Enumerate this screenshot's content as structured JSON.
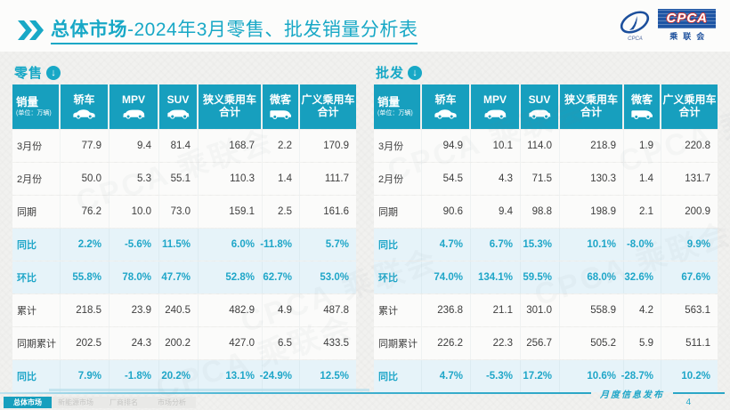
{
  "page": {
    "title_prefix": "总体市场",
    "title_suffix": "-2024年3月零售、批发销量分析表",
    "footer_note": "月度信息发布",
    "page_number": "4"
  },
  "logo": {
    "acronym": "CPCA",
    "cn_name": "乘联会",
    "tagline": "CPCA"
  },
  "accent_colors": {
    "teal": "#179FBE",
    "percent_text": "#1FA6C8",
    "percent_row_bg": "#E6F3F9",
    "logo_blue": "#1C4F9C",
    "logo_red": "#D0312D"
  },
  "columns": {
    "corner": {
      "label": "销量",
      "unit": "(单位：万辆)"
    },
    "items": [
      {
        "key": "sedan",
        "label": "轿车",
        "icon": "sedan-icon"
      },
      {
        "key": "mpv",
        "label": "MPV",
        "icon": "mpv-icon"
      },
      {
        "key": "suv",
        "label": "SUV",
        "icon": "suv-icon"
      },
      {
        "key": "narrow_total",
        "label": "狭义乘用车",
        "label2": "合计",
        "icon": null
      },
      {
        "key": "micro_van",
        "label": "微客",
        "icon": "van-icon"
      },
      {
        "key": "broad_total",
        "label": "广义乘用车",
        "label2": "合计",
        "icon": null
      }
    ]
  },
  "tables": {
    "retail": {
      "section_label": "零售",
      "rows": [
        {
          "label": "3月份",
          "type": "normal",
          "values": [
            "77.9",
            "9.4",
            "81.4",
            "168.7",
            "2.2",
            "170.9"
          ]
        },
        {
          "label": "2月份",
          "type": "normal",
          "values": [
            "50.0",
            "5.3",
            "55.1",
            "110.3",
            "1.4",
            "111.7"
          ]
        },
        {
          "label": "同期",
          "type": "normal",
          "values": [
            "76.2",
            "10.0",
            "73.0",
            "159.1",
            "2.5",
            "161.6"
          ]
        },
        {
          "label": "同比",
          "type": "percent",
          "values": [
            "2.2%",
            "-5.6%",
            "11.5%",
            "6.0%",
            "-11.8%",
            "5.7%"
          ]
        },
        {
          "label": "环比",
          "type": "percent",
          "values": [
            "55.8%",
            "78.0%",
            "47.7%",
            "52.8%",
            "62.7%",
            "53.0%"
          ]
        },
        {
          "label": "累计",
          "type": "normal",
          "values": [
            "218.5",
            "23.9",
            "240.5",
            "482.9",
            "4.9",
            "487.8"
          ]
        },
        {
          "label": "同期累计",
          "type": "normal",
          "values": [
            "202.5",
            "24.3",
            "200.2",
            "427.0",
            "6.5",
            "433.5"
          ]
        },
        {
          "label": "同比",
          "type": "percent",
          "values": [
            "7.9%",
            "-1.8%",
            "20.2%",
            "13.1%",
            "-24.9%",
            "12.5%"
          ]
        }
      ]
    },
    "wholesale": {
      "section_label": "批发",
      "rows": [
        {
          "label": "3月份",
          "type": "normal",
          "values": [
            "94.9",
            "10.1",
            "114.0",
            "218.9",
            "1.9",
            "220.8"
          ]
        },
        {
          "label": "2月份",
          "type": "normal",
          "values": [
            "54.5",
            "4.3",
            "71.5",
            "130.3",
            "1.4",
            "131.7"
          ]
        },
        {
          "label": "同期",
          "type": "normal",
          "values": [
            "90.6",
            "9.4",
            "98.8",
            "198.9",
            "2.1",
            "200.9"
          ]
        },
        {
          "label": "同比",
          "type": "percent",
          "values": [
            "4.7%",
            "6.7%",
            "15.3%",
            "10.1%",
            "-8.0%",
            "9.9%"
          ]
        },
        {
          "label": "环比",
          "type": "percent",
          "values": [
            "74.0%",
            "134.1%",
            "59.5%",
            "68.0%",
            "32.6%",
            "67.6%"
          ]
        },
        {
          "label": "累计",
          "type": "normal",
          "values": [
            "236.8",
            "21.1",
            "301.0",
            "558.9",
            "4.2",
            "563.1"
          ]
        },
        {
          "label": "同期累计",
          "type": "normal",
          "values": [
            "226.2",
            "22.3",
            "256.7",
            "505.2",
            "5.9",
            "511.1"
          ]
        },
        {
          "label": "同比",
          "type": "percent",
          "values": [
            "4.7%",
            "-5.3%",
            "17.2%",
            "10.6%",
            "-28.7%",
            "10.2%"
          ]
        }
      ]
    }
  },
  "footer_tabs": [
    {
      "label": "总体市场",
      "active": true
    },
    {
      "label": "新能源市场",
      "active": false
    },
    {
      "label": "厂商排名",
      "active": false
    },
    {
      "label": "市场分析",
      "active": false
    }
  ]
}
